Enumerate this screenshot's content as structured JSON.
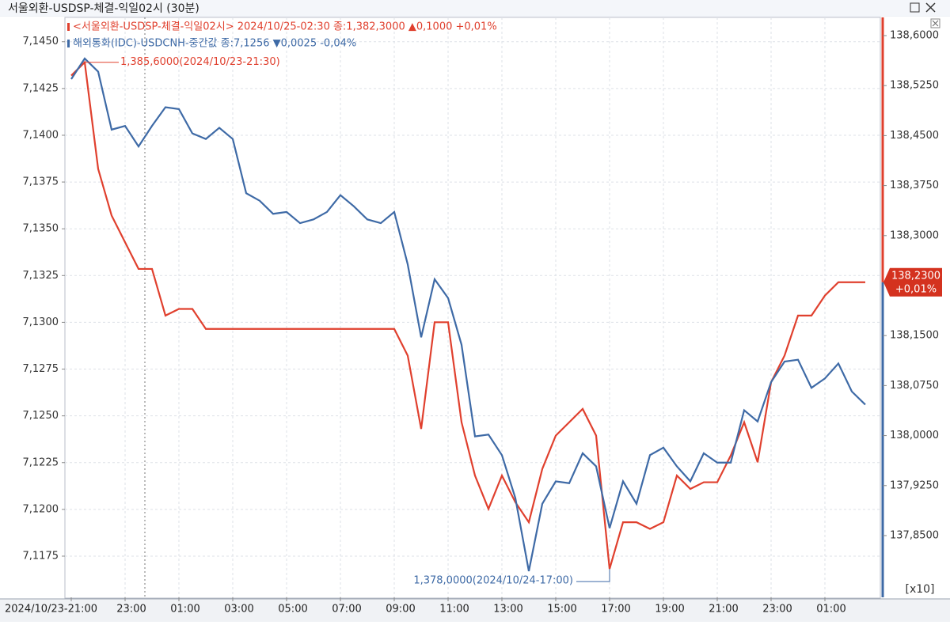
{
  "chart_data": {
    "type": "line",
    "title": "서울외환-USDSP-체결-익일02시 (30분)",
    "categories": [
      "2024/10/23-21:00",
      null,
      null,
      null,
      "23:00",
      null,
      null,
      null,
      "01:00",
      null,
      null,
      null,
      "03:00",
      null,
      null,
      null,
      "05:00",
      null,
      null,
      null,
      "07:00",
      null,
      null,
      null,
      "09:00",
      null,
      null,
      null,
      "11:00",
      null,
      null,
      null,
      "13:00",
      null,
      null,
      null,
      "15:00",
      null,
      null,
      null,
      "17:00",
      null,
      null,
      null,
      "19:00",
      null,
      null,
      null,
      "21:00",
      null,
      null,
      null,
      "23:00",
      null,
      null,
      null,
      "01:00",
      null,
      null,
      null
    ],
    "series": [
      {
        "name": "<서울외환-USDSP-체결-익일02시> 2024/10/25-02:30 종:1,382,3000  ▲0,1000 +0,01%",
        "color": "#e0402e",
        "axis": "y2",
        "values": [
          138.54,
          138.56,
          138.4,
          138.33,
          138.29,
          138.25,
          138.25,
          138.18,
          138.19,
          138.19,
          138.16,
          138.16,
          138.16,
          138.16,
          138.16,
          138.16,
          138.16,
          138.16,
          138.16,
          138.16,
          138.16,
          138.16,
          138.16,
          138.16,
          138.16,
          138.12,
          138.01,
          138.17,
          138.17,
          138.02,
          137.94,
          137.89,
          137.94,
          137.9,
          137.87,
          137.95,
          138.0,
          138.02,
          138.04,
          138.0,
          137.8,
          137.87,
          137.87,
          137.86,
          137.87,
          137.94,
          137.92,
          137.93,
          137.93,
          137.97,
          138.02,
          137.96,
          138.08,
          138.12,
          138.18,
          138.18,
          138.21,
          138.23,
          138.23,
          138.23
        ]
      },
      {
        "name": "해외통화(IDC)-USDCNH-중간값 종:7,1256 ▼0,0025 -0,04%",
        "color": "#3e6aa6",
        "values": [
          7.143,
          7.1441,
          7.1434,
          7.1403,
          7.1405,
          7.1394,
          7.1405,
          7.1415,
          7.1414,
          7.1401,
          7.1398,
          7.1404,
          7.1398,
          7.1369,
          7.1365,
          7.1358,
          7.1359,
          7.1353,
          7.1355,
          7.1359,
          7.1368,
          7.1362,
          7.1355,
          7.1353,
          7.1359,
          7.1331,
          7.1292,
          7.1323,
          7.1313,
          7.1288,
          7.1239,
          7.124,
          7.1229,
          7.1206,
          7.1167,
          7.1203,
          7.1215,
          7.1214,
          7.123,
          7.1223,
          7.119,
          7.1215,
          7.1203,
          7.1229,
          7.1233,
          7.1223,
          7.1215,
          7.123,
          7.1225,
          7.1225,
          7.1253,
          7.1247,
          7.1268,
          7.1279,
          7.128,
          7.1265,
          7.127,
          7.1278,
          7.1263,
          7.1256
        ]
      }
    ],
    "ylim": [
      7.1153,
      7.1463
    ],
    "yticks": [
      {
        "value": 7.145,
        "label": "7,1450"
      },
      {
        "value": 7.1425,
        "label": "7,1425"
      },
      {
        "value": 7.14,
        "label": "7,1400"
      },
      {
        "value": 7.1375,
        "label": "7,1375"
      },
      {
        "value": 7.135,
        "label": "7,1350"
      },
      {
        "value": 7.1325,
        "label": "7,1325"
      },
      {
        "value": 7.13,
        "label": "7,1300"
      },
      {
        "value": 7.1275,
        "label": "7,1275"
      },
      {
        "value": 7.125,
        "label": "7,1250"
      },
      {
        "value": 7.1225,
        "label": "7,1225"
      },
      {
        "value": 7.12,
        "label": "7,1200"
      },
      {
        "value": 7.1175,
        "label": "7,1175"
      }
    ],
    "y2lim": [
      137.7574,
      138.6273
    ],
    "y2ticks": [
      {
        "value": 138.6,
        "label": "138,6000"
      },
      {
        "value": 138.525,
        "label": "138,5250"
      },
      {
        "value": 138.45,
        "label": "138,4500"
      },
      {
        "value": 138.375,
        "label": "138,3750"
      },
      {
        "value": 138.3,
        "label": "138,3000"
      },
      {
        "value": 138.15,
        "label": "138,1500"
      },
      {
        "value": 138.075,
        "label": "138,0750"
      },
      {
        "value": 138.0,
        "label": "138,0000"
      },
      {
        "value": 137.925,
        "label": "137,9250"
      },
      {
        "value": 137.85,
        "label": "137,8500"
      }
    ],
    "y2_scale_label": "[x10]",
    "max_annotation": "1,385,6000(2024/10/23-21:30)",
    "min_annotation": "1,378,0000(2024/10/24-17:00)",
    "last_value_label": "138,2300",
    "last_change_label": "+0,01%",
    "grid": true
  }
}
